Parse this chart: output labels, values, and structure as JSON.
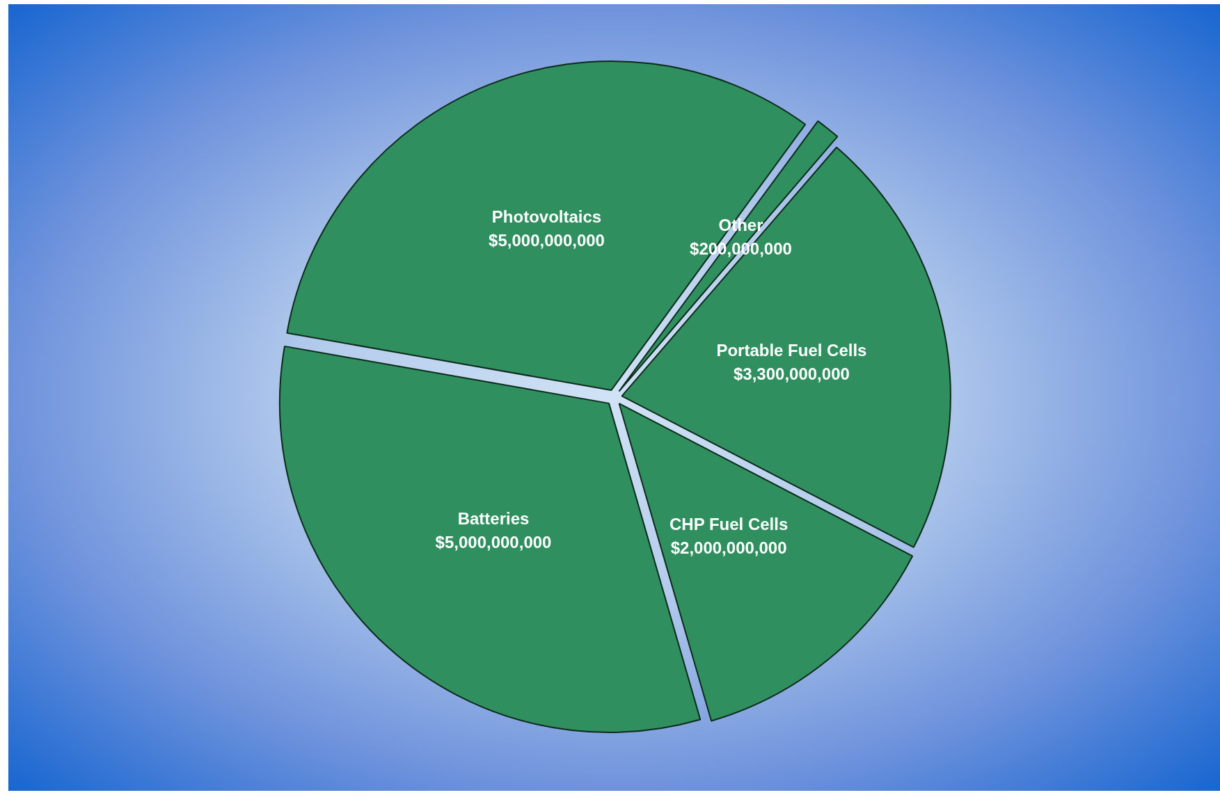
{
  "chart_data": {
    "type": "pie",
    "categories": [
      "Photovoltaics",
      "Other",
      "Portable Fuel Cells",
      "CHP Fuel Cells",
      "Batteries"
    ],
    "values": [
      5000000000,
      200000000,
      3300000000,
      2000000000,
      5000000000
    ],
    "value_labels": [
      "$5,000,000,000",
      "$200,000,000",
      "$3,300,000,000",
      "$2,000,000,000",
      "$5,000,000,000"
    ],
    "colors": [
      "#2f8f5f",
      "#2f8f5f",
      "#2f8f5f",
      "#2f8f5f",
      "#2f8f5f"
    ],
    "legend": false
  }
}
